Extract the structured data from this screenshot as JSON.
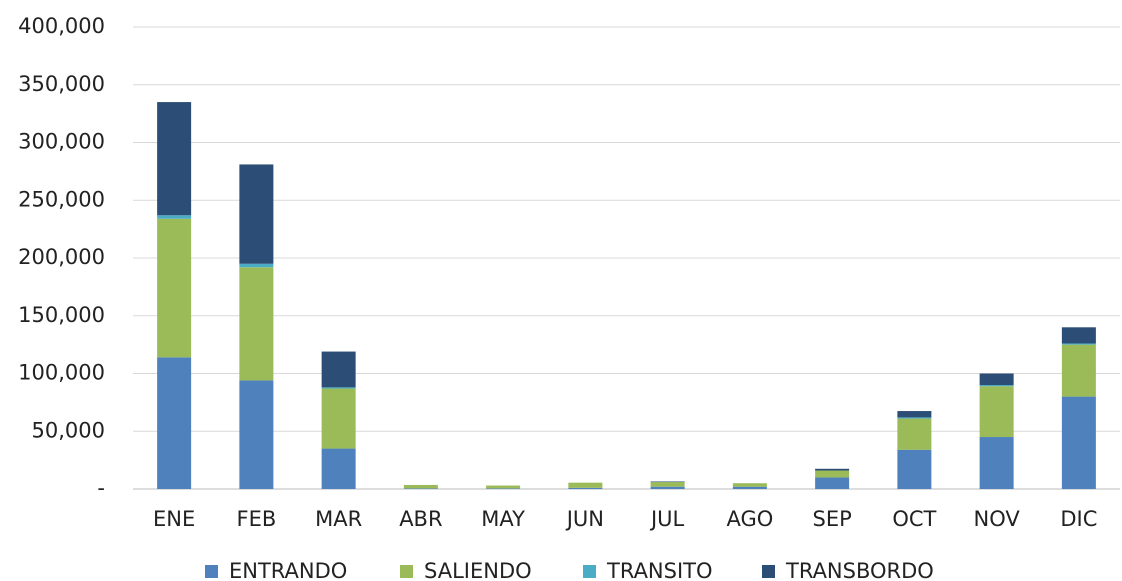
{
  "chart_data": {
    "type": "stacked_bar",
    "categories": [
      "ENE",
      "FEB",
      "MAR",
      "ABR",
      "MAY",
      "JUN",
      "JUL",
      "AGO",
      "SEP",
      "OCT",
      "NOV",
      "DIC"
    ],
    "series": [
      {
        "name": "ENTRANDO",
        "color": "#4f81bd",
        "values": [
          114000,
          94000,
          35000,
          500,
          500,
          1000,
          2000,
          2000,
          10000,
          34000,
          45000,
          80000
        ]
      },
      {
        "name": "SALIENDO",
        "color": "#9bbb59",
        "values": [
          120000,
          98000,
          52000,
          3000,
          2500,
          4500,
          4000,
          3000,
          6000,
          27000,
          44000,
          45000
        ]
      },
      {
        "name": "TRANSITO",
        "color": "#4bacc6",
        "values": [
          3000,
          3000,
          1000,
          0,
          0,
          0,
          0,
          0,
          0,
          1000,
          1000,
          1000
        ]
      },
      {
        "name": "TRANSBORDO",
        "color": "#2c4d75",
        "values": [
          98000,
          86000,
          31000,
          0,
          0,
          0,
          500,
          0,
          1500,
          5500,
          10000,
          14000
        ]
      }
    ],
    "ylim": [
      0,
      400000
    ],
    "yticks": [
      {
        "value": 0,
        "label": "-"
      },
      {
        "value": 50000,
        "label": "50,000"
      },
      {
        "value": 100000,
        "label": "100,000"
      },
      {
        "value": 150000,
        "label": "150,000"
      },
      {
        "value": 200000,
        "label": "200,000"
      },
      {
        "value": 250000,
        "label": "250,000"
      },
      {
        "value": 300000,
        "label": "300,000"
      },
      {
        "value": 350000,
        "label": "350,000"
      },
      {
        "value": 400000,
        "label": "400,000"
      }
    ],
    "grid": true,
    "legend": "bottom"
  }
}
